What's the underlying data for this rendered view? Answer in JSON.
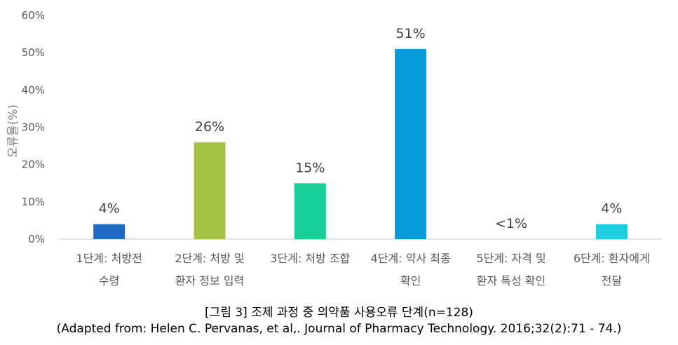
{
  "chart_data": {
    "type": "bar",
    "categories": [
      [
        "1단계: 처방전",
        "수령"
      ],
      [
        "2단계: 처방 및",
        "환자 정보 입력"
      ],
      [
        "3단계: 처방 조합"
      ],
      [
        "4단계: 약사 최종",
        "확인"
      ],
      [
        "5단계: 자격 및",
        "환자 특성 확인"
      ],
      [
        "6단계: 환자에게",
        "전달"
      ]
    ],
    "values": [
      4,
      26,
      15,
      51,
      0,
      4
    ],
    "data_labels": [
      "4%",
      "26%",
      "15%",
      "51%",
      "<1%",
      "4%"
    ],
    "bar_colors": [
      "#1f6bc4",
      "#a4c243",
      "#19cf9a",
      "#079bd9",
      "#ffffff",
      "#1ecfe0"
    ],
    "ylabel": "오류율(%)",
    "xlabel": "",
    "ylim": [
      0,
      60
    ],
    "yticks": [
      0,
      10,
      20,
      30,
      40,
      50,
      60
    ],
    "ytick_labels": [
      "0%",
      "10%",
      "20%",
      "30%",
      "40%",
      "50%",
      "60%"
    ],
    "grid": false,
    "legend": "none"
  },
  "caption": {
    "title": "[그림 3] 조제 과정 중 의약품 사용오류 단계(n=128)",
    "source": "(Adapted from: Helen C. Pervanas, et al,. Journal of Pharmacy Technology. 2016;32(2):71 - 74.)"
  }
}
